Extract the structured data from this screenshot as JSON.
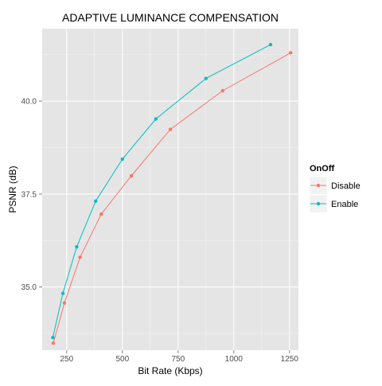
{
  "chart_data": {
    "type": "line",
    "title": "ADAPTIVE LUMINANCE COMPENSATION",
    "xlabel": "Bit Rate (Kbps)",
    "ylabel": "PSNR (dB)",
    "xlim": [
      140,
      1290
    ],
    "ylim": [
      33.3,
      41.95
    ],
    "x_ticks": [
      250,
      500,
      750,
      1000,
      1250
    ],
    "x_tick_labels": [
      "250",
      "500",
      "750",
      "1000",
      "1250"
    ],
    "y_ticks": [
      35.0,
      37.5,
      40.0
    ],
    "y_tick_labels": [
      "35.0",
      "37.5",
      "40.0"
    ],
    "grid": true,
    "panel_background": "#e5e5e5",
    "legend": {
      "title": "OnOff",
      "position": "right"
    },
    "series": [
      {
        "name": "Disable",
        "color": "#f8766d",
        "points": [
          {
            "x": 190,
            "y": 33.49
          },
          {
            "x": 240,
            "y": 34.57
          },
          {
            "x": 310,
            "y": 35.8
          },
          {
            "x": 405,
            "y": 36.96
          },
          {
            "x": 540,
            "y": 37.99
          },
          {
            "x": 715,
            "y": 39.24
          },
          {
            "x": 950,
            "y": 40.28
          },
          {
            "x": 1255,
            "y": 41.3
          }
        ]
      },
      {
        "name": "Enable",
        "color": "#00bfc4",
        "points": [
          {
            "x": 188,
            "y": 33.64
          },
          {
            "x": 233,
            "y": 34.83
          },
          {
            "x": 295,
            "y": 36.08
          },
          {
            "x": 380,
            "y": 37.31
          },
          {
            "x": 500,
            "y": 38.44
          },
          {
            "x": 650,
            "y": 39.52
          },
          {
            "x": 875,
            "y": 40.61
          },
          {
            "x": 1165,
            "y": 41.52
          }
        ]
      }
    ]
  }
}
